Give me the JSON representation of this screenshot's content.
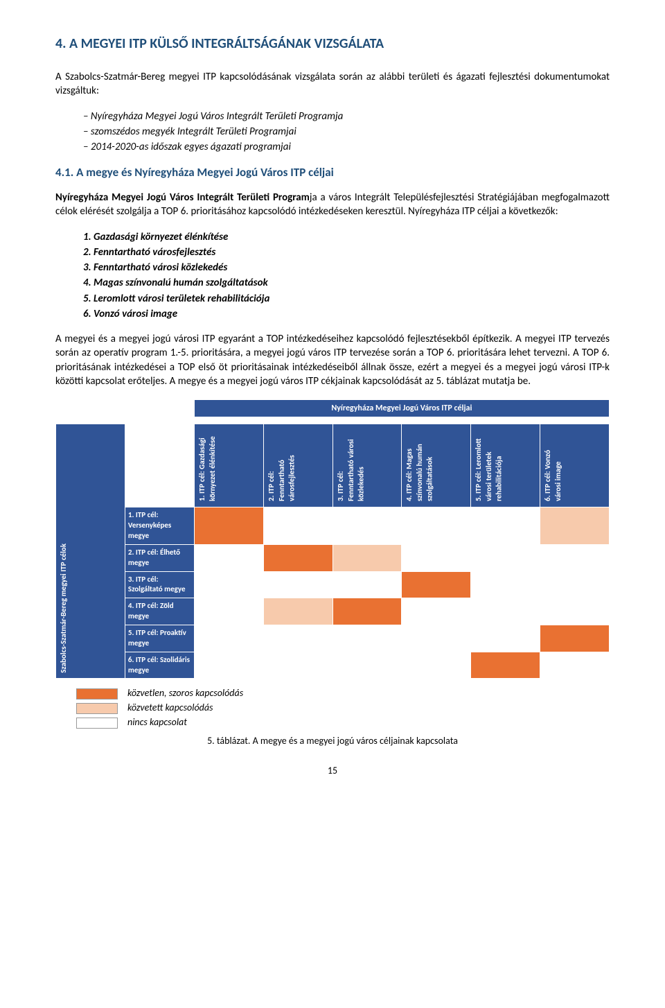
{
  "title": "4.  A MEGYEI ITP KÜLSŐ INTEGRÁLTSÁGÁNAK VIZSGÁLATA",
  "intro": "A Szabolcs-Szatmár-Bereg megyei ITP kapcsolódásának vizsgálata során az alábbi területi és ágazati fejlesztési dokumentumokat vizsgáltuk:",
  "dash_items": [
    "Nyíregyháza Megyei Jogú Város Integrált Területi Programja",
    "szomszédos megyék Integrált Területi Programjai",
    "2014-2020-as időszak egyes ágazati programjai"
  ],
  "subheading": "4.1. A megye és Nyíregyháza Megyei Jogú Város ITP céljai",
  "para1_a": "Nyíregyháza Megyei Jogú Város Integrált Területi Program",
  "para1_b": "ja a város Integrált Településfejlesztési Stratégiájában megfogalmazott célok elérését szolgálja a TOP 6. prioritásához kapcsolódó intézkedéseken keresztül. Nyíregyháza ITP céljai a következők:",
  "num_items": [
    "1.   Gazdasági környezet élénkítése",
    "2.   Fenntartható városfejlesztés",
    "3.   Fenntartható városi közlekedés",
    "4.   Magas színvonalú humán szolgáltatások",
    "5.   Leromlott városi területek rehabilitációja",
    "6.   Vonzó városi image"
  ],
  "para2": "A megyei és a megyei jogú városi ITP egyaránt a TOP intézkedéseihez kapcsolódó fejlesztésekből építkezik. A megyei ITP tervezés során az operatív program 1.-5. prioritására, a megyei jogú város ITP tervezése során a TOP 6. prioritására lehet tervezni. A TOP 6. prioritásának intézkedései a TOP első öt prioritásainak intézkedéseiből állnak össze, ezért a megyei és a megyei jogú városi ITP-k közötti kapcsolat erőteljes. A megye és a megyei jogú város ITP cékjainak kapcsolódását az 5. táblázat mutatja be.",
  "table": {
    "top_header": "Nyíregyháza Megyei Jogú Város ITP céljai",
    "side_header": "Szabolcs-Szatmár-Bereg megyei ITP célok",
    "columns": [
      "1. ITP cél: Gazdasági környezet élénkítése",
      "2. ITP cél: Fenntartható városfejlesztés",
      "3. ITP cél: Fenntartható városi közlekedés",
      "4. ITP cél: Magas színvonalú humán szolgáltatások",
      "5. ITP cél: Leromlott városi területek rehabilitációja",
      "6. ITP cél: Vonzó városi image"
    ],
    "rows": [
      "1. ITP cél: Versenyképes megye",
      "2. ITP cél: Élhető megye",
      "3. ITP cél: Szolgáltató megye",
      "4. ITP cél: Zöld megye",
      "5. ITP cél: Proaktív megye",
      "6. ITP cél: Szolidáris megye"
    ],
    "cells": [
      [
        "orange",
        "blank",
        "blank",
        "blank",
        "blank",
        "peach"
      ],
      [
        "blank",
        "orange",
        "peach",
        "blank",
        "blank",
        "blank"
      ],
      [
        "blank",
        "blank",
        "blank",
        "orange",
        "blank",
        "blank"
      ],
      [
        "blank",
        "peach",
        "orange",
        "blank",
        "blank",
        "blank"
      ],
      [
        "blank",
        "blank",
        "blank",
        "blank",
        "blank",
        "orange"
      ],
      [
        "blank",
        "blank",
        "blank",
        "blank",
        "orange",
        "blank"
      ]
    ],
    "colors": {
      "orange": "#e97132",
      "peach": "#f7caac",
      "blank": "#ffffff",
      "header_bg": "#305496"
    }
  },
  "legend": [
    {
      "color": "orange",
      "text": "közvetlen, szoros kapcsolódás"
    },
    {
      "color": "peach",
      "text": "közvetett kapcsolódás"
    },
    {
      "color": "blank",
      "text": "nincs kapcsolat"
    }
  ],
  "caption": "5. táblázat. A megye és a megyei jogú város céljainak kapcsolata",
  "page_number": "15"
}
